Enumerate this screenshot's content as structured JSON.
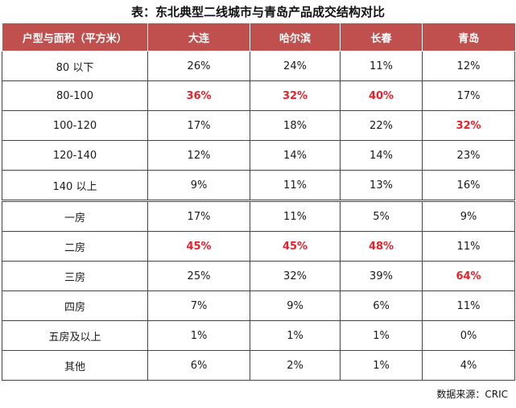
{
  "title": "表：东北典型二线城市与青岛产品成交结构对比",
  "table": {
    "headers": [
      "户型与面积（平方米）",
      "大连",
      "哈尔滨",
      "长春",
      "青岛"
    ],
    "rows": [
      {
        "label": "80 以下",
        "cells": [
          {
            "v": "26%",
            "hl": false
          },
          {
            "v": "24%",
            "hl": false
          },
          {
            "v": "11%",
            "hl": false
          },
          {
            "v": "12%",
            "hl": false
          }
        ]
      },
      {
        "label": "80-100",
        "cells": [
          {
            "v": "36%",
            "hl": true
          },
          {
            "v": "32%",
            "hl": true
          },
          {
            "v": "40%",
            "hl": true
          },
          {
            "v": "17%",
            "hl": false
          }
        ]
      },
      {
        "label": "100-120",
        "cells": [
          {
            "v": "17%",
            "hl": false
          },
          {
            "v": "18%",
            "hl": false
          },
          {
            "v": "22%",
            "hl": false
          },
          {
            "v": "32%",
            "hl": true
          }
        ]
      },
      {
        "label": "120-140",
        "cells": [
          {
            "v": "12%",
            "hl": false
          },
          {
            "v": "14%",
            "hl": false
          },
          {
            "v": "14%",
            "hl": false
          },
          {
            "v": "23%",
            "hl": false
          }
        ]
      },
      {
        "label": "140 以上",
        "cells": [
          {
            "v": "9%",
            "hl": false
          },
          {
            "v": "11%",
            "hl": false
          },
          {
            "v": "13%",
            "hl": false
          },
          {
            "v": "16%",
            "hl": false
          }
        ]
      },
      {
        "label": "一房",
        "cells": [
          {
            "v": "17%",
            "hl": false
          },
          {
            "v": "11%",
            "hl": false
          },
          {
            "v": "5%",
            "hl": false
          },
          {
            "v": "9%",
            "hl": false
          }
        ]
      },
      {
        "label": "二房",
        "cells": [
          {
            "v": "45%",
            "hl": true
          },
          {
            "v": "45%",
            "hl": true
          },
          {
            "v": "48%",
            "hl": true
          },
          {
            "v": "11%",
            "hl": false
          }
        ]
      },
      {
        "label": "三房",
        "cells": [
          {
            "v": "25%",
            "hl": false
          },
          {
            "v": "32%",
            "hl": false
          },
          {
            "v": "39%",
            "hl": false
          },
          {
            "v": "64%",
            "hl": true
          }
        ]
      },
      {
        "label": "四房",
        "cells": [
          {
            "v": "7%",
            "hl": false
          },
          {
            "v": "9%",
            "hl": false
          },
          {
            "v": "6%",
            "hl": false
          },
          {
            "v": "11%",
            "hl": false
          }
        ]
      },
      {
        "label": "五房及以上",
        "cells": [
          {
            "v": "1%",
            "hl": false
          },
          {
            "v": "1%",
            "hl": false
          },
          {
            "v": "1%",
            "hl": false
          },
          {
            "v": "0%",
            "hl": false
          }
        ]
      },
      {
        "label": "其他",
        "cells": [
          {
            "v": "6%",
            "hl": false
          },
          {
            "v": "2%",
            "hl": false
          },
          {
            "v": "1%",
            "hl": false
          },
          {
            "v": "4%",
            "hl": false
          }
        ]
      }
    ]
  },
  "colors": {
    "header_bg": "#c0504d",
    "highlight_text": "#e8202a"
  },
  "source": "数据来源：CRIC"
}
